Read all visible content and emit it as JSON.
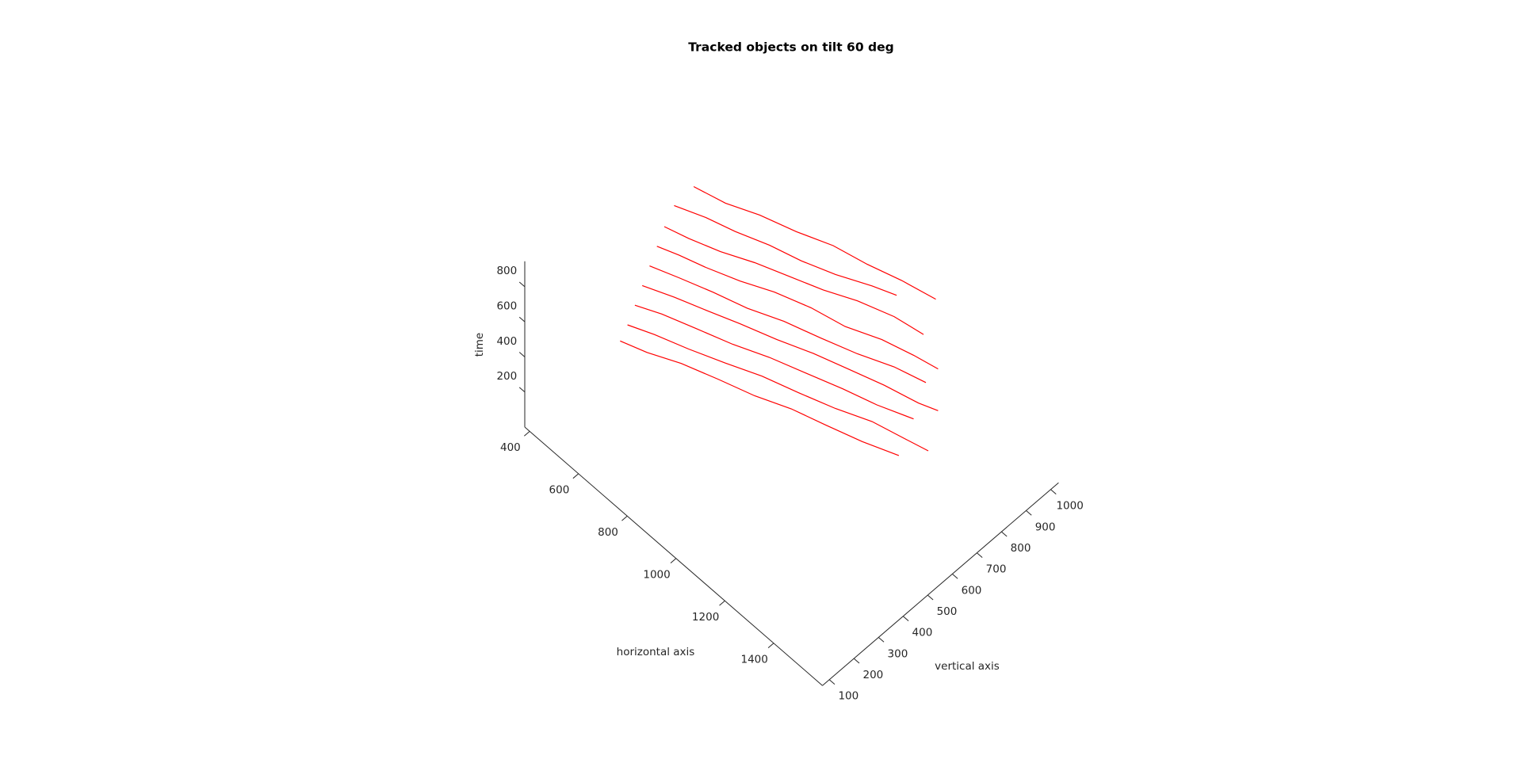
{
  "chart_data": {
    "type": "line3d",
    "title": "Tracked objects on tilt 60 deg",
    "xlabel": "horizontal axis",
    "ylabel": "vertical axis",
    "zlabel": "time",
    "xlim": [
      380,
      1600
    ],
    "ylim": [
      72,
      1032
    ],
    "zlim": [
      0,
      945
    ],
    "xticks": [
      400,
      600,
      800,
      1000,
      1200,
      1400
    ],
    "yticks": [
      100,
      200,
      300,
      400,
      500,
      600,
      700,
      800,
      900,
      1000
    ],
    "zticks": [
      200,
      400,
      600,
      800
    ],
    "series": [
      {
        "color": "#ff0000",
        "x": [
          500,
          590,
          680,
          780,
          880,
          980,
          1080,
          1150
        ],
        "y": [
          560,
          600,
          630,
          670,
          700,
          740,
          790,
          820
        ],
        "z": [
          820,
          812,
          805,
          800,
          795,
          790,
          785,
          780
        ]
      },
      {
        "color": "#ff0000",
        "x": [
          480,
          560,
          650,
          750,
          850,
          950,
          1050,
          1160,
          1260
        ],
        "y": [
          540,
          560,
          600,
          640,
          680,
          720,
          760,
          800,
          820
        ],
        "z": [
          700,
          705,
          690,
          700,
          695,
          690,
          700,
          695,
          690
        ]
      },
      {
        "color": "#ff0000",
        "x": [
          470,
          540,
          620,
          720,
          820,
          930,
          1040,
          1150,
          1250,
          1330
        ],
        "y": [
          520,
          540,
          570,
          610,
          650,
          690,
          720,
          760,
          790,
          810
        ],
        "z": [
          600,
          610,
          600,
          595,
          605,
          600,
          590,
          600,
          595,
          590
        ]
      },
      {
        "color": "#ff0000",
        "x": [
          460,
          550,
          650,
          760,
          870,
          980,
          1090,
          1200,
          1300
        ],
        "y": [
          500,
          530,
          570,
          600,
          640,
          680,
          720,
          760,
          790
        ],
        "z": [
          500,
          505,
          495,
          500,
          510,
          500,
          495,
          505,
          500
        ]
      },
      {
        "color": "#ff0000",
        "x": [
          450,
          540,
          640,
          740,
          850,
          960,
          1070,
          1180,
          1290,
          1350
        ],
        "y": [
          480,
          520,
          550,
          590,
          630,
          670,
          700,
          740,
          770,
          790
        ],
        "z": [
          400,
          395,
          405,
          400,
          395,
          400,
          410,
          400,
          395,
          400
        ]
      },
      {
        "color": "#ff0000",
        "x": [
          440,
          520,
          620,
          730,
          840,
          950,
          1060,
          1170,
          1280
        ],
        "y": [
          460,
          490,
          530,
          570,
          610,
          650,
          690,
          720,
          760
        ],
        "z": [
          300,
          310,
          300,
          295,
          305,
          300,
          295,
          300,
          305
        ]
      },
      {
        "color": "#ff0000",
        "x": [
          430,
          510,
          610,
          720,
          830,
          940,
          1050,
          1160,
          1270,
          1340
        ],
        "y": [
          440,
          470,
          510,
          550,
          590,
          630,
          670,
          710,
          740,
          760
        ],
        "z": [
          200,
          205,
          195,
          200,
          210,
          200,
          195,
          205,
          200,
          195
        ]
      },
      {
        "color": "#ff0000",
        "x": [
          420,
          500,
          600,
          710,
          820,
          930,
          1040,
          1150,
          1260
        ],
        "y": [
          420,
          450,
          490,
          530,
          570,
          610,
          640,
          680,
          720
        ],
        "z": [
          120,
          115,
          125,
          120,
          110,
          120,
          125,
          115,
          120
        ]
      },
      {
        "color": "#ff0000",
        "x": [
          520,
          620,
          720,
          830,
          940,
          1050,
          1160,
          1270
        ],
        "y": [
          620,
          650,
          690,
          730,
          770,
          800,
          830,
          860
        ],
        "z": [
          880,
          870,
          875,
          865,
          870,
          860,
          865,
          855
        ]
      }
    ]
  }
}
